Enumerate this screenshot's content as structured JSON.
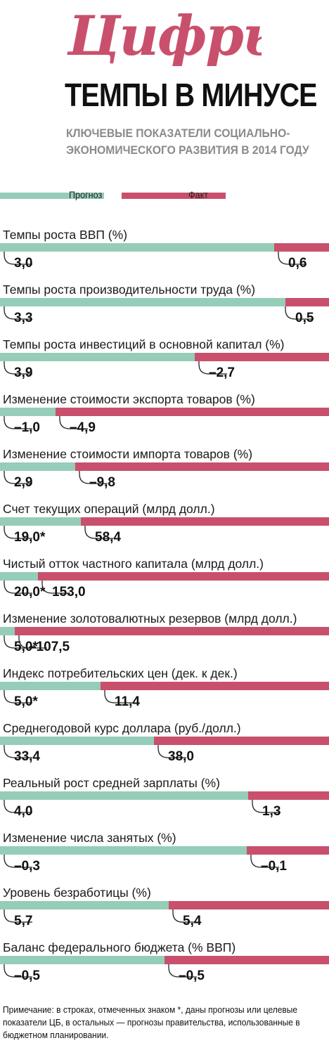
{
  "header": {
    "logo_text": "Цифры",
    "title": "ТЕМПЫ В МИНУСЕ",
    "subtitle_line1": "КЛЮЧЕВЫЕ ПОКАЗАТЕЛИ СОЦИАЛЬНО-",
    "subtitle_line2": "ЭКОНОМИЧЕСКОГО РАЗВИТИЯ В 2014 ГОДУ"
  },
  "legend": {
    "forecast_label": "Прогноз",
    "fact_label": "Факт"
  },
  "colors": {
    "forecast": "#95cdb8",
    "fact": "#c9506c",
    "accent": "#c9506c"
  },
  "chart_data": {
    "type": "bar",
    "orientation": "horizontal",
    "stacked_share": true,
    "title": "ТЕМПЫ В МИНУСЕ",
    "series": [
      {
        "name": "Прогноз"
      },
      {
        "name": "Факт"
      }
    ],
    "rows": [
      {
        "label": "Темпы роста ВВП (%)",
        "forecast": 3.0,
        "forecast_text": "3,0",
        "fact": 0.6,
        "fact_text": "0,6"
      },
      {
        "label": "Темпы роста производительности труда (%)",
        "forecast": 3.3,
        "forecast_text": "3,3",
        "fact": 0.5,
        "fact_text": "0,5"
      },
      {
        "label": "Темпы роста инвестиций в основной капитал (%)",
        "forecast": 3.9,
        "forecast_text": "3,9",
        "fact": -2.7,
        "fact_text": "–2,7"
      },
      {
        "label": "Изменение стоимости экспорта товаров (%)",
        "forecast": -1.0,
        "forecast_text": "–1,0",
        "fact": -4.9,
        "fact_text": "–4,9"
      },
      {
        "label": "Изменение стоимости импорта товаров (%)",
        "forecast": 2.9,
        "forecast_text": "2,9",
        "fact": -9.8,
        "fact_text": "–9,8"
      },
      {
        "label": "Счет текущих операций (млрд долл.)",
        "forecast": 19.0,
        "forecast_text": "19,0*",
        "fact": 58.4,
        "fact_text": "58,4"
      },
      {
        "label": "Чистый отток частного капитала (млрд долл.)",
        "forecast": 20.0,
        "forecast_text": "20,0*",
        "fact": 153.0,
        "fact_text": "153,0"
      },
      {
        "label": "Изменение золотовалютных резервов (млрд долл.)",
        "forecast": 5.0,
        "forecast_text": "5,0*",
        "fact": -107.5,
        "fact_text": "–107,5"
      },
      {
        "label": "Индекс потребительских цен (дек. к дек.)",
        "forecast": 5.0,
        "forecast_text": "5,0*",
        "fact": 11.4,
        "fact_text": "11,4"
      },
      {
        "label": "Среднегодовой курс доллара (руб./долл.)",
        "forecast": 33.4,
        "forecast_text": "33,4",
        "fact": 38.0,
        "fact_text": "38,0"
      },
      {
        "label": "Реальный рост средней зарплаты (%)",
        "forecast": 4.0,
        "forecast_text": "4,0",
        "fact": 1.3,
        "fact_text": "1,3"
      },
      {
        "label": "Изменение числа занятых (%)",
        "forecast": -0.3,
        "forecast_text": "–0,3",
        "fact": -0.1,
        "fact_text": "–0,1"
      },
      {
        "label": "Уровень безработицы (%)",
        "forecast": 5.7,
        "forecast_text": "5,7",
        "fact": 5.4,
        "fact_text": "5,4"
      },
      {
        "label": "Баланс федерального бюджета (% ВВП)",
        "forecast": -0.5,
        "forecast_text": "–0,5",
        "fact": -0.5,
        "fact_text": "–0,5"
      }
    ]
  },
  "note": "Примечание: в строках, отмеченных знаком *, даны прогнозы или целевые показатели ЦБ, в остальных — прогнозы правительства, использованные в бюджетном планировании."
}
